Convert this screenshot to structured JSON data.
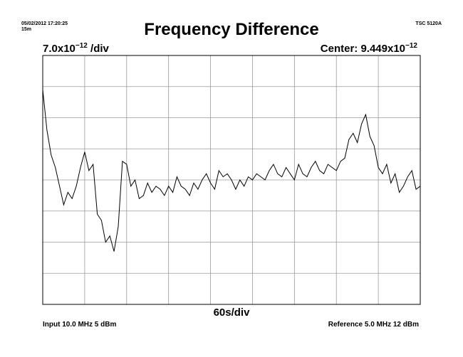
{
  "header": {
    "timestamp": "05/02/2012 17:20:25",
    "duration": "15m",
    "instrument": "TSC 5120A",
    "title": "Frequency Difference"
  },
  "scale": {
    "ydiv_value": "7.0x10",
    "ydiv_exponent": "−12",
    "ydiv_unit": " /div",
    "center_label": "Center: 9.449x10",
    "center_exponent": "−12"
  },
  "xaxis": {
    "xdiv": "60s/div"
  },
  "footer": {
    "input": "Input 10.0 MHz 5 dBm",
    "reference": "Reference 5.0 MHz 12 dBm"
  },
  "colors": {
    "trace": "#000000",
    "grid": "#9a9a9a",
    "frame": "#000000"
  },
  "chart_data": {
    "type": "line",
    "title": "Frequency Difference",
    "xlabel": "60s/div",
    "ylabel": "7.0x10^-12 /div",
    "center": "9.449x10^-12",
    "x_unit": "divisions (60 s each)",
    "y_unit": "divisions from center (7.0x10^-12 each)",
    "xlim": [
      0,
      9
    ],
    "ylim": [
      -4,
      4
    ],
    "grid": true,
    "series": [
      {
        "x": [
          0,
          0.1,
          0.2,
          0.3,
          0.4,
          0.5,
          0.6,
          0.7,
          0.8,
          0.9,
          1,
          1.1,
          1.2,
          1.3,
          1.4,
          1.5,
          1.6,
          1.7,
          1.8,
          1.9,
          2,
          2.1,
          2.2,
          2.3,
          2.4,
          2.5,
          2.6,
          2.7,
          2.8,
          2.9,
          3,
          3.1,
          3.2,
          3.3,
          3.4,
          3.5,
          3.6,
          3.7,
          3.8,
          3.9,
          4,
          4.1,
          4.2,
          4.3,
          4.4,
          4.5,
          4.6,
          4.7,
          4.8,
          4.9,
          5,
          5.1,
          5.2,
          5.3,
          5.4,
          5.5,
          5.6,
          5.7,
          5.8,
          5.9,
          6,
          6.1,
          6.2,
          6.3,
          6.4,
          6.5,
          6.6,
          6.7,
          6.8,
          6.9,
          7,
          7.1,
          7.2,
          7.3,
          7.4,
          7.5,
          7.6,
          7.7,
          7.8,
          7.9,
          8,
          8.1,
          8.2,
          8.3,
          8.4,
          8.5,
          8.6,
          8.7,
          8.8,
          8.9,
          9
        ],
        "y": [
          2.9,
          1.6,
          0.8,
          0.4,
          -0.2,
          -0.8,
          -0.4,
          -0.6,
          -0.2,
          0.4,
          0.9,
          0.3,
          0.5,
          -1.1,
          -1.3,
          -2.0,
          -1.8,
          -2.3,
          -1.5,
          0.6,
          0.5,
          -0.2,
          0.0,
          -0.6,
          -0.5,
          -0.1,
          -0.4,
          -0.2,
          -0.3,
          -0.5,
          -0.2,
          -0.4,
          0.1,
          -0.2,
          -0.3,
          -0.5,
          -0.1,
          -0.3,
          0.0,
          0.2,
          -0.1,
          -0.3,
          0.3,
          0.1,
          0.2,
          0.0,
          -0.3,
          0.0,
          -0.2,
          0.1,
          0.0,
          0.2,
          0.1,
          0.0,
          0.3,
          0.5,
          0.2,
          0.1,
          0.4,
          0.2,
          0.0,
          0.5,
          0.2,
          0.1,
          0.4,
          0.6,
          0.3,
          0.2,
          0.5,
          0.4,
          0.3,
          0.6,
          0.7,
          1.3,
          1.5,
          1.2,
          1.8,
          2.1,
          1.4,
          1.1,
          0.4,
          0.2,
          0.5,
          -0.1,
          0.2,
          -0.4,
          -0.2,
          0.1,
          0.3,
          -0.3,
          -0.2
        ]
      }
    ]
  }
}
